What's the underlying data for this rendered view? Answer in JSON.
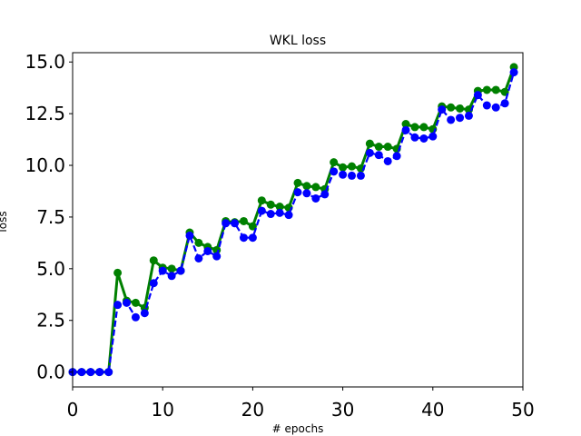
{
  "chart_data": {
    "type": "line",
    "title": "WKL loss",
    "xlabel": "# epochs",
    "ylabel": "loss",
    "xlim": [
      0,
      50
    ],
    "ylim": [
      -0.72,
      15.45
    ],
    "xticks": [
      0,
      10,
      20,
      30,
      40,
      50
    ],
    "xtick_labels": [
      "0",
      "10",
      "20",
      "30",
      "40",
      "50"
    ],
    "yticks": [
      0.0,
      2.5,
      5.0,
      7.5,
      10.0,
      12.5,
      15.0
    ],
    "ytick_labels": [
      "0.0",
      "2.5",
      "5.0",
      "7.5",
      "10.0",
      "12.5",
      "15.0"
    ],
    "grid": false,
    "legend": false,
    "series": [
      {
        "color": "#008000",
        "line_style": "solid",
        "marker": "circle",
        "x": [
          0,
          1,
          2,
          3,
          4,
          5,
          6,
          7,
          8,
          9,
          10,
          11,
          12,
          13,
          14,
          15,
          16,
          17,
          18,
          19,
          20,
          21,
          22,
          23,
          24,
          25,
          26,
          27,
          28,
          29,
          30,
          31,
          32,
          33,
          34,
          35,
          36,
          37,
          38,
          39,
          40,
          41,
          42,
          43,
          44,
          45,
          46,
          47,
          48,
          49
        ],
        "values": [
          0.0,
          0.0,
          0.0,
          0.0,
          0.0,
          4.8,
          3.45,
          3.35,
          3.1,
          5.4,
          5.05,
          5.0,
          4.9,
          6.75,
          6.25,
          6.05,
          5.9,
          7.3,
          7.25,
          7.3,
          7.05,
          8.3,
          8.1,
          8.0,
          7.95,
          9.15,
          9.0,
          8.95,
          8.85,
          10.15,
          9.9,
          9.95,
          9.85,
          11.05,
          10.9,
          10.9,
          10.8,
          12.0,
          11.85,
          11.85,
          11.75,
          12.85,
          12.8,
          12.75,
          12.7,
          13.6,
          13.65,
          13.65,
          13.55,
          14.75
        ]
      },
      {
        "color": "#0000ff",
        "line_style": "dashed",
        "marker": "circle",
        "x": [
          0,
          1,
          2,
          3,
          4,
          5,
          6,
          7,
          8,
          9,
          10,
          11,
          12,
          13,
          14,
          15,
          16,
          17,
          18,
          19,
          20,
          21,
          22,
          23,
          24,
          25,
          26,
          27,
          28,
          29,
          30,
          31,
          32,
          33,
          34,
          35,
          36,
          37,
          38,
          39,
          40,
          41,
          42,
          43,
          44,
          45,
          46,
          47,
          48,
          49
        ],
        "values": [
          0.0,
          0.0,
          0.0,
          0.0,
          0.0,
          3.25,
          3.35,
          2.65,
          2.85,
          4.3,
          4.9,
          4.65,
          4.9,
          6.6,
          5.5,
          5.85,
          5.6,
          7.2,
          7.2,
          6.5,
          6.5,
          7.8,
          7.65,
          7.7,
          7.6,
          8.7,
          8.65,
          8.4,
          8.6,
          9.7,
          9.55,
          9.5,
          9.5,
          10.6,
          10.5,
          10.2,
          10.45,
          11.7,
          11.35,
          11.3,
          11.4,
          12.7,
          12.2,
          12.3,
          12.4,
          13.4,
          12.9,
          12.8,
          13.0,
          14.5
        ]
      }
    ]
  }
}
